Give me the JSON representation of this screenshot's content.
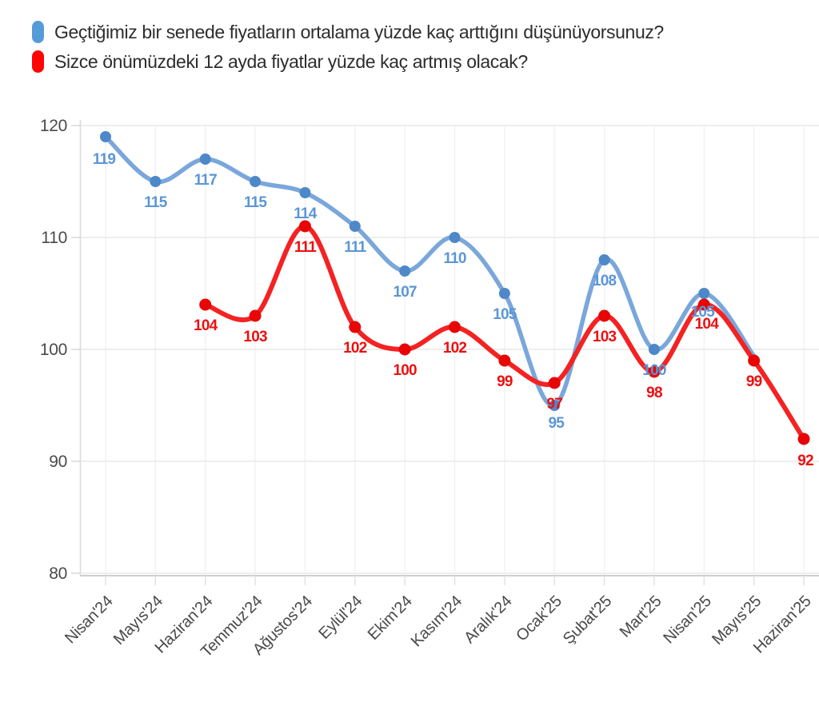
{
  "legend": {
    "items": [
      {
        "label": "Geçtiğimiz bir senede fiyatların ortalama yüzde kaç arttığını düşünüyorsunuz?",
        "color": "#559bd8"
      },
      {
        "label": "Sizce önümüzdeki 12 ayda fiyatlar yüzde kaç artmış olacak?",
        "color": "#fe0404"
      }
    ]
  },
  "chart_data": {
    "type": "line",
    "smooth": true,
    "grid": true,
    "legend_position": "top-left",
    "title": "",
    "xlabel": "",
    "ylabel": "",
    "ylim": [
      80,
      120
    ],
    "y_ticks": [
      120,
      110,
      100,
      90,
      80
    ],
    "x_tick_rotation": -45,
    "categories": [
      "Nisan'24",
      "Mayıs'24",
      "Haziran'24",
      "Temmuz'24",
      "Ağustos'24",
      "Eylül'24",
      "Ekim'24",
      "Kasım'24",
      "Aralık'24",
      "Ocak'25",
      "Şubat'25",
      "Mart'25",
      "Nisan'25",
      "Mayıs'25",
      "Haziran'25"
    ],
    "series": [
      {
        "name": "Geçtiğimiz bir senede fiyatların ortalama yüzde kaç arttığını düşünüyorsunuz?",
        "line_color": "#7aa7db",
        "dot_color": "#4e88c9",
        "label_color": "#5b96d6",
        "values": [
          119,
          115,
          117,
          115,
          114,
          111,
          107,
          110,
          105,
          95,
          108,
          100,
          105,
          null,
          null
        ]
      },
      {
        "name": "Sizce önümüzdeki 12 ayda fiyatlar yüzde kaç artmış olacak?",
        "line_color": "#f42222",
        "dot_color": "#e70505",
        "label_color": "#ec1010",
        "values": [
          null,
          null,
          104,
          103,
          111,
          102,
          100,
          102,
          99,
          97,
          103,
          98,
          104,
          99,
          92
        ]
      }
    ]
  }
}
